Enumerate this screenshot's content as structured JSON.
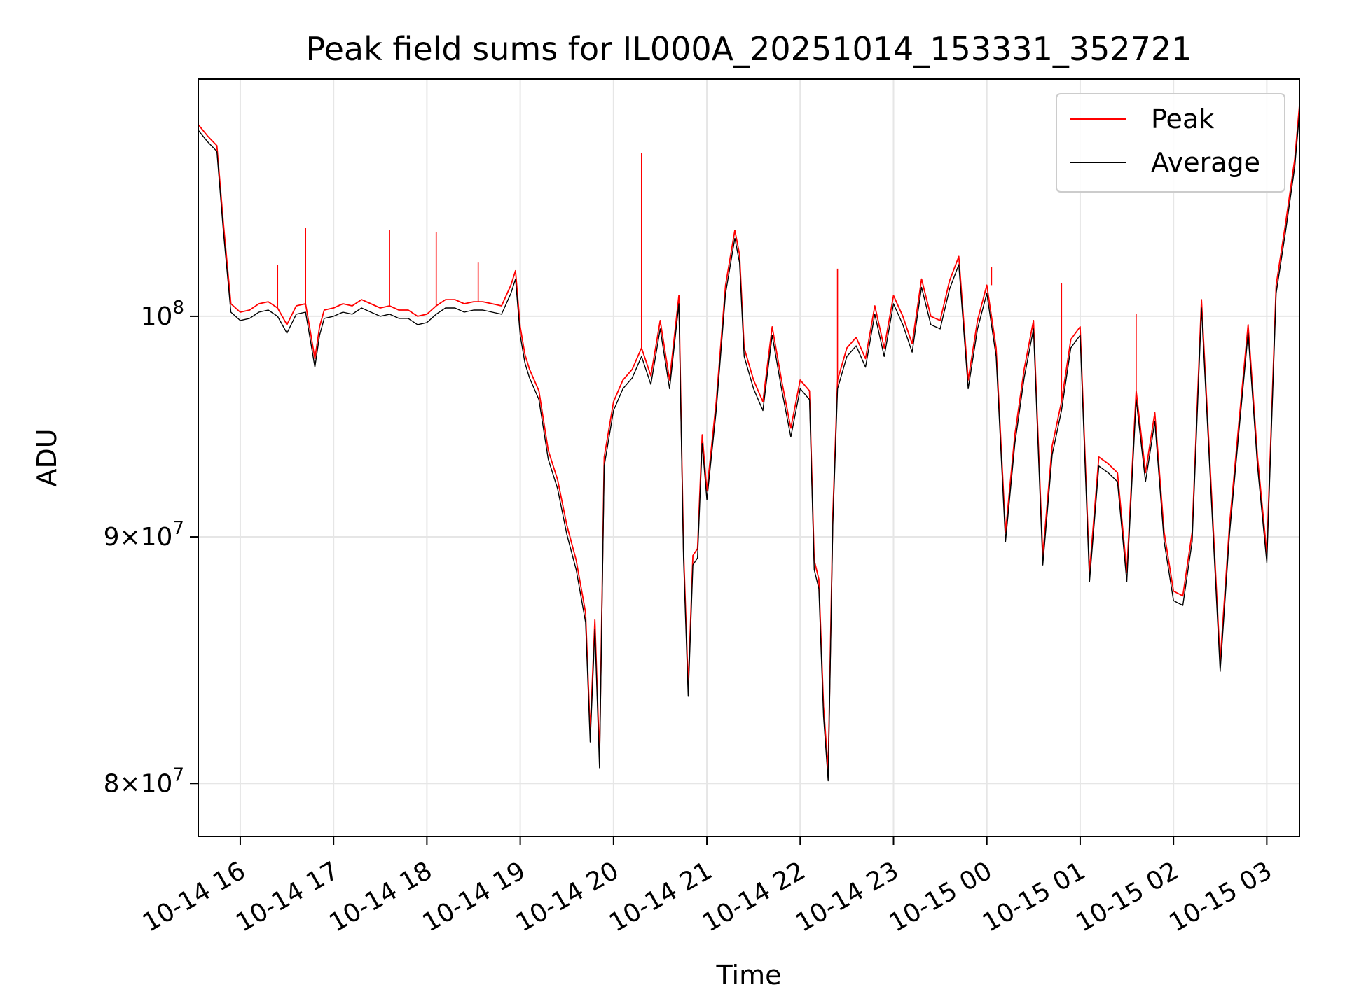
{
  "chart_data": {
    "type": "line",
    "title": "Peak field sums for IL000A_20251014_153331_352721",
    "xlabel": "Time",
    "ylabel": "ADU",
    "yscale": "log",
    "ylim": [
      78000000,
      112000000
    ],
    "xlim_hours": [
      15.55,
      27.35
    ],
    "grid": true,
    "legend_position": "top-right",
    "x_ticks": [
      {
        "hour": 16,
        "label": "10-14 16"
      },
      {
        "hour": 17,
        "label": "10-14 17"
      },
      {
        "hour": 18,
        "label": "10-14 18"
      },
      {
        "hour": 19,
        "label": "10-14 19"
      },
      {
        "hour": 20,
        "label": "10-14 20"
      },
      {
        "hour": 21,
        "label": "10-14 21"
      },
      {
        "hour": 22,
        "label": "10-14 22"
      },
      {
        "hour": 23,
        "label": "10-14 23"
      },
      {
        "hour": 24,
        "label": "10-15 00"
      },
      {
        "hour": 25,
        "label": "10-15 01"
      },
      {
        "hour": 26,
        "label": "10-15 02"
      },
      {
        "hour": 27,
        "label": "10-15 03"
      }
    ],
    "y_ticks": [
      {
        "value": 80000000,
        "base": "8×10",
        "exp": "7"
      },
      {
        "value": 90000000,
        "base": "9×10",
        "exp": "7"
      },
      {
        "value": 100000000,
        "base": "10",
        "exp": "8"
      }
    ],
    "x_hours": [
      15.55,
      15.65,
      15.75,
      15.82,
      15.9,
      16.0,
      16.1,
      16.2,
      16.3,
      16.4,
      16.5,
      16.6,
      16.7,
      16.75,
      16.8,
      16.85,
      16.9,
      17.0,
      17.1,
      17.2,
      17.3,
      17.4,
      17.5,
      17.6,
      17.7,
      17.8,
      17.9,
      18.0,
      18.1,
      18.2,
      18.3,
      18.4,
      18.5,
      18.6,
      18.7,
      18.8,
      18.9,
      18.95,
      19.0,
      19.05,
      19.1,
      19.2,
      19.3,
      19.4,
      19.5,
      19.6,
      19.7,
      19.75,
      19.8,
      19.85,
      19.9,
      20.0,
      20.1,
      20.2,
      20.3,
      20.4,
      20.5,
      20.6,
      20.7,
      20.75,
      20.8,
      20.85,
      20.9,
      20.95,
      21.0,
      21.1,
      21.2,
      21.3,
      21.35,
      21.4,
      21.5,
      21.6,
      21.7,
      21.8,
      21.9,
      22.0,
      22.1,
      22.15,
      22.2,
      22.25,
      22.3,
      22.35,
      22.4,
      22.5,
      22.6,
      22.7,
      22.8,
      22.9,
      23.0,
      23.1,
      23.2,
      23.3,
      23.4,
      23.5,
      23.6,
      23.7,
      23.8,
      23.9,
      24.0,
      24.1,
      24.2,
      24.3,
      24.4,
      24.5,
      24.6,
      24.7,
      24.8,
      24.9,
      25.0,
      25.1,
      25.2,
      25.3,
      25.4,
      25.5,
      25.6,
      25.7,
      25.8,
      25.9,
      26.0,
      26.1,
      26.2,
      26.3,
      26.4,
      26.5,
      26.6,
      26.7,
      26.8,
      26.9,
      27.0,
      27.1,
      27.2,
      27.3,
      27.35
    ],
    "series": [
      {
        "name": "Peak",
        "color": "#ff0000",
        "values": [
          109600000,
          109000000,
          108500000,
          104500000,
          100600000,
          100200000,
          100300000,
          100600000,
          100700000,
          100400000,
          99600000,
          100500000,
          100600000,
          99300000,
          98000000,
          99500000,
          100300000,
          100400000,
          100600000,
          100500000,
          100800000,
          100600000,
          100400000,
          100500000,
          100300000,
          100300000,
          100000000,
          100100000,
          100500000,
          100800000,
          100800000,
          100600000,
          100700000,
          100700000,
          100600000,
          100500000,
          101500000,
          102200000,
          99500000,
          98200000,
          97500000,
          96500000,
          93800000,
          92500000,
          90500000,
          89000000,
          86800000,
          82000000,
          86500000,
          81000000,
          93500000,
          96000000,
          97000000,
          97500000,
          98500000,
          97200000,
          99800000,
          97000000,
          101000000,
          89500000,
          83800000,
          89200000,
          89500000,
          94500000,
          92000000,
          96000000,
          101500000,
          104200000,
          103000000,
          98500000,
          97000000,
          96000000,
          99500000,
          97000000,
          94800000,
          97000000,
          96500000,
          89000000,
          88200000,
          83000000,
          80500000,
          91000000,
          97000000,
          98500000,
          99000000,
          98000000,
          100500000,
          98500000,
          101000000,
          100000000,
          98700000,
          101800000,
          100000000,
          99800000,
          101700000,
          102900000,
          97000000,
          99800000,
          101500000,
          98500000,
          90200000,
          94500000,
          97500000,
          99800000,
          89200000,
          94000000,
          96000000,
          98900000,
          99500000,
          88500000,
          93500000,
          93200000,
          92800000,
          88500000,
          96500000,
          92800000,
          95500000,
          90200000,
          87700000,
          87500000,
          90200000,
          100800000,
          92500000,
          84800000,
          90500000,
          95000000,
          99600000,
          93500000,
          89300000,
          101500000,
          104500000,
          107800000,
          110600000
        ],
        "spikes": [
          {
            "hour": 16.4,
            "value": 102500000
          },
          {
            "hour": 16.7,
            "value": 104300000
          },
          {
            "hour": 17.6,
            "value": 104200000
          },
          {
            "hour": 18.1,
            "value": 104100000
          },
          {
            "hour": 18.55,
            "value": 102600000
          },
          {
            "hour": 20.3,
            "value": 108100000
          },
          {
            "hour": 22.4,
            "value": 102300000
          },
          {
            "hour": 24.05,
            "value": 102400000
          },
          {
            "hour": 24.8,
            "value": 101600000
          },
          {
            "hour": 25.6,
            "value": 100100000
          }
        ]
      },
      {
        "name": "Average",
        "color": "#000000",
        "values": [
          109300000,
          108700000,
          108200000,
          104100000,
          100200000,
          99800000,
          99900000,
          100200000,
          100300000,
          100000000,
          99200000,
          100100000,
          100200000,
          98900000,
          97600000,
          99100000,
          99900000,
          100000000,
          100200000,
          100100000,
          100400000,
          100200000,
          100000000,
          100100000,
          99900000,
          99900000,
          99600000,
          99700000,
          100100000,
          100400000,
          100400000,
          100200000,
          100300000,
          100300000,
          100200000,
          100100000,
          101100000,
          101800000,
          99100000,
          97800000,
          97100000,
          96100000,
          93400000,
          92100000,
          90100000,
          88600000,
          86400000,
          81600000,
          86100000,
          80600000,
          93100000,
          95600000,
          96600000,
          97100000,
          98100000,
          96800000,
          99400000,
          96600000,
          100600000,
          89100000,
          83400000,
          88800000,
          89100000,
          94100000,
          91600000,
          95600000,
          101100000,
          103800000,
          102600000,
          98100000,
          96600000,
          95600000,
          99100000,
          96600000,
          94400000,
          96600000,
          96100000,
          88600000,
          87800000,
          82600000,
          80100000,
          90600000,
          96600000,
          98100000,
          98600000,
          97600000,
          100100000,
          98100000,
          100600000,
          99600000,
          98300000,
          101400000,
          99600000,
          99400000,
          101300000,
          102500000,
          96600000,
          99400000,
          101100000,
          98100000,
          89800000,
          94100000,
          97100000,
          99400000,
          88800000,
          93600000,
          95600000,
          98500000,
          99100000,
          88100000,
          93100000,
          92800000,
          92400000,
          88100000,
          96100000,
          92400000,
          95100000,
          89800000,
          87300000,
          87100000,
          89800000,
          100400000,
          92100000,
          84400000,
          90100000,
          94600000,
          99200000,
          93100000,
          88900000,
          101100000,
          104100000,
          107400000,
          110200000
        ]
      }
    ]
  }
}
